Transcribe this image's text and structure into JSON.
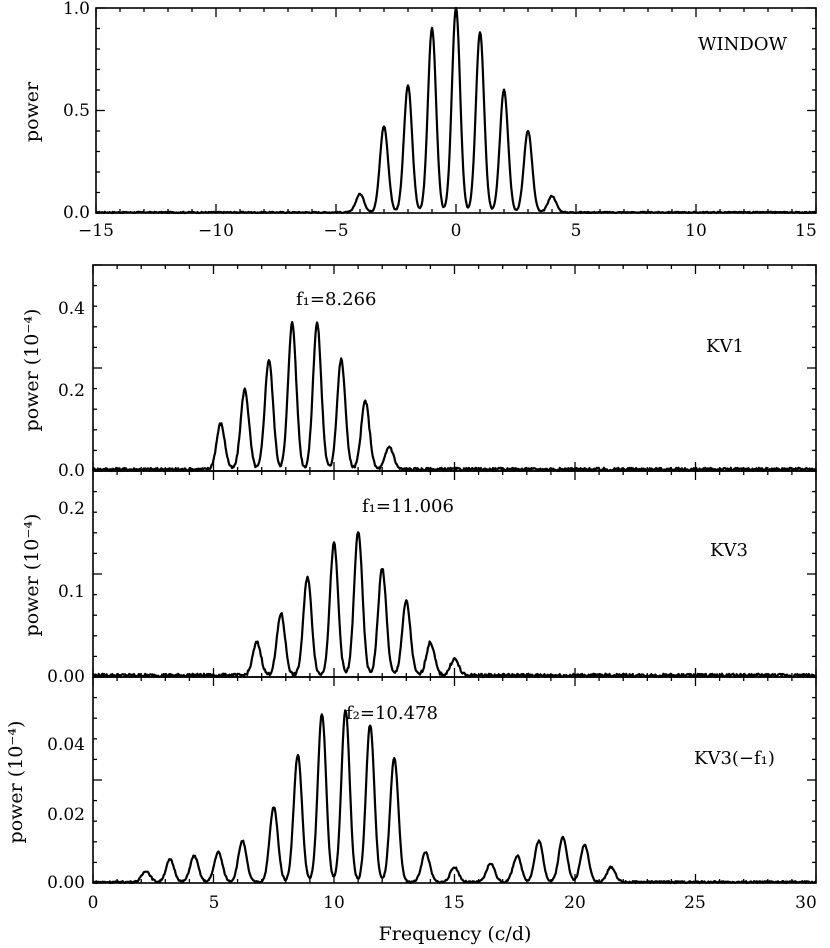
{
  "chart_data": [
    {
      "type": "line",
      "panel_label": "WINDOW",
      "ylabel": "power",
      "xlim": [
        -15,
        15
      ],
      "ylim": [
        0,
        1
      ],
      "xticks": [
        "−15",
        "−10",
        "−5",
        "0",
        "5",
        "10",
        "15"
      ],
      "yticks": [
        "0.0",
        "0.5",
        "1.0"
      ],
      "grid": false,
      "series": [
        {
          "peak_centers": [
            -4.0,
            -3.0,
            -2.0,
            -1.0,
            0.0,
            1.0,
            2.0,
            3.0,
            4.0
          ],
          "peak_heights": [
            0.09,
            0.42,
            0.62,
            0.9,
            1.0,
            0.88,
            0.6,
            0.4,
            0.08
          ],
          "peak_width": 0.17,
          "noise_level": 0.006
        }
      ]
    },
    {
      "type": "line",
      "panel_label": "KV1",
      "annotation": "f₁=8.266",
      "ylabel": "power (10⁻⁴)",
      "xlim": [
        0,
        30
      ],
      "ylim": [
        0,
        0.45
      ],
      "yticks": [
        "0.0",
        "0.2",
        "0.4"
      ],
      "grid": false,
      "series": [
        {
          "peak_centers": [
            5.3,
            6.3,
            7.3,
            8.266,
            9.3,
            10.3,
            11.3,
            12.3
          ],
          "peak_heights": [
            0.1,
            0.175,
            0.24,
            0.32,
            0.32,
            0.24,
            0.15,
            0.05
          ],
          "peak_width": 0.17,
          "noise_level": 0.007
        }
      ]
    },
    {
      "type": "line",
      "panel_label": "KV3",
      "annotation": "f₁=11.006",
      "ylabel": "power (10⁻⁴)",
      "xlim": [
        0,
        30
      ],
      "ylim": [
        0,
        0.25
      ],
      "yticks": [
        "0.00",
        "0.1",
        "0.2"
      ],
      "grid": false,
      "series": [
        {
          "peak_centers": [
            6.8,
            7.8,
            8.9,
            10.0,
            11.006,
            12.0,
            13.0,
            14.0,
            15.0
          ],
          "peak_heights": [
            0.04,
            0.075,
            0.12,
            0.16,
            0.175,
            0.13,
            0.09,
            0.04,
            0.02
          ],
          "peak_width": 0.17,
          "noise_level": 0.004
        }
      ]
    },
    {
      "type": "line",
      "panel_label": "KV3(−f₁)",
      "annotation": "f₂=10.478",
      "xlabel": "Frequency (c/d)",
      "ylabel": "power (10⁻⁴)",
      "xlim": [
        0,
        30
      ],
      "ylim": [
        0,
        0.055
      ],
      "xticks": [
        "0",
        "5",
        "10",
        "15",
        "20",
        "25",
        "30"
      ],
      "yticks": [
        "0.00",
        "0.02",
        "0.04"
      ],
      "grid": false,
      "series": [
        {
          "peak_centers": [
            2.2,
            3.2,
            4.2,
            5.2,
            6.2,
            7.5,
            8.5,
            9.5,
            10.478,
            11.5,
            12.5,
            13.8,
            15.0,
            16.5,
            17.6,
            18.5,
            19.5,
            20.4,
            21.5
          ],
          "peak_heights": [
            0.003,
            0.006,
            0.007,
            0.008,
            0.011,
            0.02,
            0.034,
            0.045,
            0.046,
            0.042,
            0.033,
            0.008,
            0.004,
            0.005,
            0.007,
            0.011,
            0.012,
            0.01,
            0.004
          ],
          "peak_width": 0.17,
          "noise_level": 0.0005
        }
      ]
    }
  ]
}
